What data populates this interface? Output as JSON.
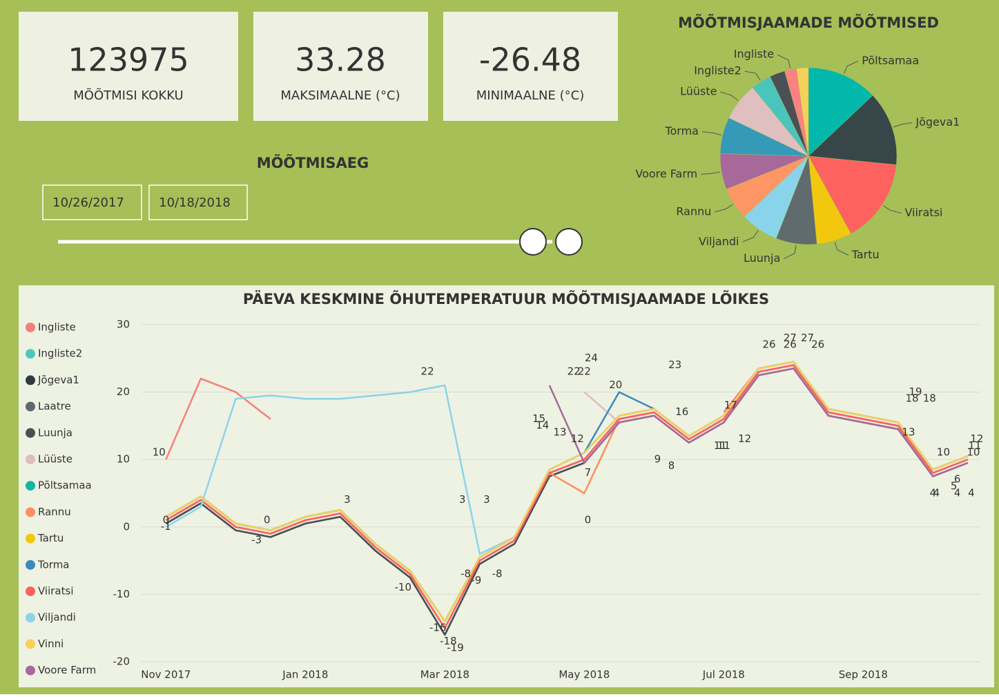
{
  "kpis": [
    {
      "value": 123975,
      "label": "MÕÕTMISI KOKKU"
    },
    {
      "value": 33.28,
      "label": "MAKSIMAALNE (°C)"
    },
    {
      "value": -26.48,
      "label": "MINIMAALNE (°C)"
    }
  ],
  "slicer": {
    "title": "MÕÕTMISAEG",
    "start": "10/26/2017",
    "end": "10/18/2018"
  },
  "chart_data": [
    {
      "type": "pie",
      "title": "MÕÕTMISJAAMADE MÕÕTMISED",
      "categories": [
        "Põltsamaa",
        "Jõgeva1",
        "Viiratsi",
        "Tartu",
        "Luunja",
        "Viljandi",
        "Rannu",
        "Voore Farm",
        "Torma",
        "Lüüste",
        "Ingliste2",
        null,
        "Ingliste",
        null
      ],
      "values": [
        16100,
        16900,
        19200,
        8000,
        9300,
        8700,
        7400,
        8100,
        8300,
        8700,
        4600,
        3500,
        2700,
        2700
      ],
      "colors": [
        "#01B8AA",
        "#374649",
        "#FD625E",
        "#F2C80F",
        "#5F6B6D",
        "#8AD4EB",
        "#FE9666",
        "#A66999",
        "#3599B8",
        "#DFBFBF",
        "#4AC5BB",
        "#4A5054",
        "#FB8281",
        "#F4D25A"
      ]
    },
    {
      "type": "line",
      "title": "PÄEVA KESKMINE ÕHUTEMPERATUUR MÕÕTMISJAAMADE LÕIKES",
      "x": [
        0,
        0.5,
        1,
        1.5,
        2,
        2.5,
        3,
        3.5,
        4,
        4.5,
        5,
        5.5,
        6,
        6.5,
        7,
        7.5,
        8,
        8.5,
        9,
        9.5,
        10,
        10.5,
        11,
        11.5
      ],
      "xlim": [
        -0.35,
        11.68
      ],
      "xticks": [
        {
          "value": 0,
          "label": "Nov 2017"
        },
        {
          "value": 2,
          "label": "Jan 2018"
        },
        {
          "value": 4,
          "label": "Mar 2018"
        },
        {
          "value": 6,
          "label": "May 2018"
        },
        {
          "value": 8,
          "label": "Jul 2018"
        },
        {
          "value": 10,
          "label": "Sep 2018"
        }
      ],
      "ylim": [
        -20,
        30
      ],
      "yticks": [
        -20,
        -10,
        0,
        10,
        20,
        30
      ],
      "grid": true,
      "legend": "left",
      "series": [
        {
          "name": "Ingliste",
          "color": "#F57F7A",
          "values": [
            10,
            22,
            20,
            16,
            null,
            null,
            null,
            null,
            null,
            null,
            null,
            null,
            null,
            null,
            null,
            null,
            17,
            23.5,
            24.5,
            17.5,
            16.5,
            15.5,
            8.5,
            10.5
          ]
        },
        {
          "name": "Ingliste2",
          "color": "#4DC7BD",
          "values": [
            1.5,
            4.5,
            0.5,
            -0.5,
            1.5,
            2.5,
            -2.5,
            -6.5,
            -14,
            -4.5,
            -1.5,
            8.5,
            11,
            16.5,
            17.5,
            13.5,
            16.5,
            23.5,
            24.5,
            17.5,
            16.5,
            15.5,
            8.5,
            10.5
          ]
        },
        {
          "name": "Jõgeva1",
          "color": "#2F3B40",
          "values": [
            0.5,
            3.5,
            -0.5,
            -1.5,
            0.5,
            1.5,
            -3.5,
            -7.5,
            -16,
            -5.5,
            -2.5,
            7.5,
            9.5,
            15.5,
            16.5,
            12.5,
            15.5,
            22.5,
            23.5,
            16.5,
            15.5,
            14.5,
            7.5,
            9.5
          ]
        },
        {
          "name": "Laatre",
          "color": "#5E6A6B",
          "values": [
            1,
            4,
            0,
            -1,
            1,
            2,
            -3,
            -7,
            -15,
            -5,
            -2,
            8,
            10,
            16,
            17,
            13,
            16,
            23,
            24,
            17,
            16,
            15,
            8,
            10
          ]
        },
        {
          "name": "Luunja",
          "color": "#4A5054",
          "values": [
            0.5,
            3.5,
            -0.5,
            -1.5,
            0.5,
            1.5,
            -3.5,
            -7.5,
            -16,
            -5.5,
            -2.5,
            7.5,
            9.5,
            15.5,
            16.5,
            12.5,
            15.5,
            22.5,
            23.5,
            16.5,
            15.5,
            14.5,
            7.5,
            9.5
          ]
        },
        {
          "name": "Lüüste",
          "color": "#DDBDC3",
          "values": [
            null,
            null,
            null,
            null,
            null,
            null,
            null,
            null,
            null,
            null,
            null,
            null,
            20,
            15.5,
            16.5,
            12.5,
            15.5,
            22.5,
            23.5,
            16.5,
            15.5,
            14.5,
            7.5,
            9.5
          ]
        },
        {
          "name": "Põltsamaa",
          "color": "#12B5A5",
          "values": [
            1.5,
            4.5,
            0.5,
            -0.5,
            1.5,
            2.5,
            -2.5,
            -6.5,
            -14,
            -4.5,
            -1.5,
            8.5,
            11,
            16.5,
            17.5,
            13.5,
            16.5,
            23.5,
            24.5,
            17.5,
            16.5,
            15.5,
            8.5,
            10.5
          ]
        },
        {
          "name": "Rannu",
          "color": "#FD8F5E",
          "values": [
            1,
            4,
            0,
            -1,
            1,
            2,
            -3,
            -7,
            -15,
            -5,
            -2,
            8,
            5,
            16,
            17,
            13,
            16,
            23,
            24,
            17,
            16,
            15,
            8,
            10
          ]
        },
        {
          "name": "Tartu",
          "color": "#F2C80F",
          "values": [
            1.5,
            4.5,
            0.5,
            -0.5,
            1.5,
            2.5,
            -2.5,
            -6.5,
            -14,
            -4.5,
            -1.5,
            8.5,
            11,
            16.5,
            17.5,
            13.5,
            16.5,
            23.5,
            24.5,
            17.5,
            16.5,
            15.5,
            8.5,
            10.5
          ]
        },
        {
          "name": "Torma",
          "color": "#3A8BBB",
          "values": [
            1.5,
            4.5,
            0.5,
            -0.5,
            1.5,
            2.5,
            -2.5,
            -6.5,
            -14,
            -4.5,
            -1.5,
            8.5,
            11,
            20,
            17.5,
            13.5,
            16.5,
            23.5,
            24.5,
            17.5,
            16.5,
            15.5,
            8.5,
            10.5
          ]
        },
        {
          "name": "Viiratsi",
          "color": "#FC625E",
          "values": [
            1,
            4,
            0,
            -1,
            1,
            2,
            -3,
            -7,
            -15,
            -5,
            -2,
            8,
            10,
            16,
            17,
            13,
            16,
            23,
            24,
            17,
            16,
            15,
            8,
            10
          ]
        },
        {
          "name": "Viljandi",
          "color": "#8AD4EB",
          "values": [
            0,
            3,
            19,
            19.5,
            19,
            19,
            19.5,
            20,
            21,
            -4,
            -1.5,
            8.5,
            11,
            16.5,
            17.5,
            13.5,
            16.5,
            23.5,
            24.5,
            17.5,
            16.5,
            15.5,
            8.5,
            10.5
          ]
        },
        {
          "name": "Vinni",
          "color": "#F6CF5C",
          "values": [
            1.5,
            4.5,
            0.5,
            -0.5,
            1.5,
            2.5,
            -2.5,
            -6.5,
            -14,
            -4.5,
            -1.5,
            8.5,
            11,
            16.5,
            17.5,
            13.5,
            16.5,
            23.5,
            24.5,
            17.5,
            16.5,
            15.5,
            8.5,
            10.5
          ]
        },
        {
          "name": "Voore Farm",
          "color": "#A66999",
          "values": [
            null,
            null,
            null,
            null,
            null,
            null,
            null,
            null,
            null,
            null,
            null,
            21,
            9.5,
            15.5,
            16.5,
            12.5,
            15.5,
            22.5,
            23.5,
            16.5,
            15.5,
            14.5,
            7.5,
            9.5
          ]
        }
      ],
      "data_labels": [
        {
          "x": -0.1,
          "value": 10
        },
        {
          "x": 0,
          "value": 0
        },
        {
          "x": 0,
          "value": -1
        },
        {
          "x": 1.3,
          "value": -3
        },
        {
          "x": 1.45,
          "value": 0
        },
        {
          "x": 2.6,
          "value": 3
        },
        {
          "x": 3.4,
          "value": -10
        },
        {
          "x": 3.75,
          "value": 22
        },
        {
          "x": 3.9,
          "value": -16
        },
        {
          "x": 4.05,
          "value": -18
        },
        {
          "x": 4.15,
          "value": -19
        },
        {
          "x": 4.3,
          "value": -8
        },
        {
          "x": 4.25,
          "value": 3
        },
        {
          "x": 4.45,
          "value": -9
        },
        {
          "x": 4.6,
          "value": 3
        },
        {
          "x": 4.75,
          "value": -8
        },
        {
          "x": 5.35,
          "value": 15
        },
        {
          "x": 5.4,
          "value": 14
        },
        {
          "x": 5.65,
          "value": 13
        },
        {
          "x": 5.9,
          "value": 12
        },
        {
          "x": 5.85,
          "value": 22
        },
        {
          "x": 6.0,
          "value": 22
        },
        {
          "x": 6.1,
          "value": 24
        },
        {
          "x": 6.05,
          "value": 7
        },
        {
          "x": 6.05,
          "value": 0
        },
        {
          "x": 6.45,
          "value": 20
        },
        {
          "x": 7.3,
          "value": 23
        },
        {
          "x": 7.05,
          "value": 9
        },
        {
          "x": 7.25,
          "value": 8
        },
        {
          "x": 7.4,
          "value": 16
        },
        {
          "x": 7.95,
          "value": 11
        },
        {
          "x": 8.0,
          "value": 11
        },
        {
          "x": 8.1,
          "value": 17
        },
        {
          "x": 8.3,
          "value": 12
        },
        {
          "x": 8.65,
          "value": 26
        },
        {
          "x": 8.95,
          "value": 27
        },
        {
          "x": 8.95,
          "value": 26
        },
        {
          "x": 9.2,
          "value": 27
        },
        {
          "x": 9.35,
          "value": 26
        },
        {
          "x": 10.65,
          "value": 13
        },
        {
          "x": 10.95,
          "value": 18
        },
        {
          "x": 10.75,
          "value": 19
        },
        {
          "x": 10.7,
          "value": 18
        },
        {
          "x": 11.15,
          "value": 10
        },
        {
          "x": 11.3,
          "value": 5
        },
        {
          "x": 11.35,
          "value": 6
        },
        {
          "x": 11.0,
          "value": 4
        },
        {
          "x": 11.05,
          "value": 4
        },
        {
          "x": 11.35,
          "value": 4
        },
        {
          "x": 11.55,
          "value": 4
        },
        {
          "x": 11.6,
          "value": 11
        },
        {
          "x": 11.63,
          "value": 12
        },
        {
          "x": 11.58,
          "value": 10
        }
      ]
    }
  ]
}
